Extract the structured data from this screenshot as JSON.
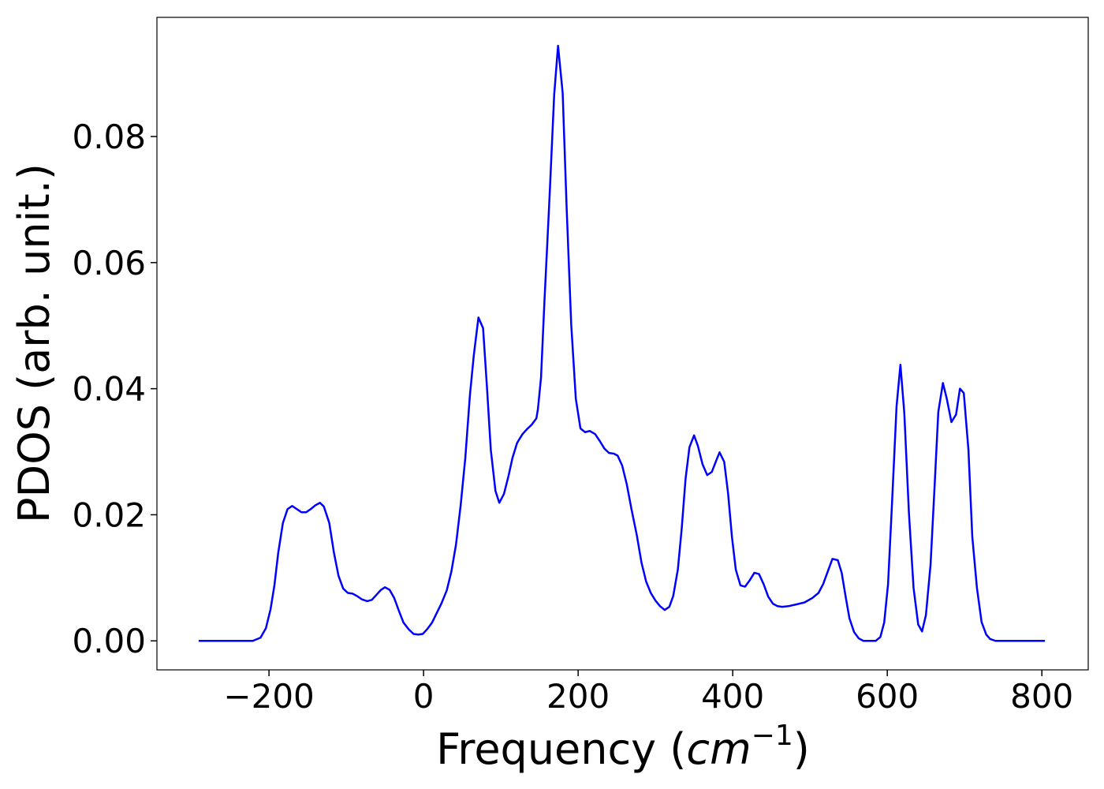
{
  "chart_data": {
    "type": "line",
    "xlabel_parts": [
      "Frequency (",
      "cm",
      "−1",
      ")"
    ],
    "ylabel": "PDOS (arb. unit.)",
    "x": [
      -291,
      -221,
      -211,
      -204,
      -198,
      -193,
      -188,
      -182,
      -176,
      -170,
      -164,
      -158,
      -152,
      -146,
      -140,
      -134,
      -129,
      -122,
      -116,
      -110,
      -104,
      -98,
      -92,
      -86,
      -80,
      -73,
      -67,
      -61,
      -55,
      -50,
      -44,
      -38,
      -32,
      -26,
      -19,
      -13,
      -7,
      -1,
      5,
      11,
      17,
      23,
      30,
      36,
      42,
      48,
      54,
      60,
      65,
      71,
      77,
      82,
      87,
      93,
      98,
      104,
      110,
      115,
      121,
      128,
      134,
      140,
      146,
      148,
      152,
      156,
      163,
      169,
      174,
      180,
      185,
      191,
      197,
      203,
      209,
      215,
      222,
      228,
      234,
      240,
      246,
      251,
      257,
      263,
      269,
      276,
      282,
      288,
      294,
      300,
      306,
      312,
      318,
      323,
      329,
      334,
      339,
      344,
      350,
      355,
      361,
      367,
      373,
      379,
      383,
      389,
      394,
      399,
      404,
      410,
      416,
      422,
      428,
      434,
      440,
      446,
      452,
      458,
      464,
      472,
      483,
      493,
      503,
      511,
      517,
      523,
      529,
      536,
      541,
      546,
      551,
      557,
      563,
      569,
      585,
      591,
      596,
      601,
      606,
      612,
      617,
      622,
      628,
      634,
      640,
      645,
      650,
      656,
      661,
      666,
      672,
      677,
      683,
      689,
      694,
      699,
      705,
      710,
      716,
      722,
      728,
      733,
      740,
      804
    ],
    "series": [
      {
        "name": "PDOS",
        "color": "#0000ff",
        "values": [
          0,
          0,
          0.0005,
          0.002,
          0.005,
          0.0088,
          0.014,
          0.0187,
          0.0209,
          0.0214,
          0.0209,
          0.0204,
          0.0204,
          0.0209,
          0.0215,
          0.0219,
          0.0213,
          0.0187,
          0.014,
          0.0103,
          0.0083,
          0.0076,
          0.0075,
          0.0071,
          0.0066,
          0.0063,
          0.0065,
          0.0073,
          0.0081,
          0.0085,
          0.0081,
          0.0068,
          0.0048,
          0.0029,
          0.0018,
          0.0011,
          0.001,
          0.0011,
          0.0019,
          0.0029,
          0.0044,
          0.0059,
          0.008,
          0.011,
          0.0153,
          0.0215,
          0.029,
          0.039,
          0.0453,
          0.0513,
          0.0496,
          0.0403,
          0.0303,
          0.0238,
          0.0219,
          0.0233,
          0.0262,
          0.029,
          0.0314,
          0.0328,
          0.0336,
          0.0343,
          0.0353,
          0.0368,
          0.0418,
          0.0528,
          0.0704,
          0.0866,
          0.0944,
          0.0869,
          0.0691,
          0.0503,
          0.0384,
          0.0337,
          0.0331,
          0.0333,
          0.0328,
          0.0317,
          0.0305,
          0.0298,
          0.0297,
          0.0294,
          0.0278,
          0.0248,
          0.0209,
          0.0167,
          0.0124,
          0.0094,
          0.0076,
          0.0064,
          0.0055,
          0.0049,
          0.0054,
          0.0071,
          0.0113,
          0.0178,
          0.0257,
          0.0307,
          0.0326,
          0.0309,
          0.028,
          0.0263,
          0.0268,
          0.0287,
          0.0299,
          0.0284,
          0.0234,
          0.0165,
          0.0113,
          0.0088,
          0.0086,
          0.0096,
          0.0108,
          0.0106,
          0.009,
          0.007,
          0.0059,
          0.0055,
          0.0054,
          0.0055,
          0.0058,
          0.0061,
          0.0068,
          0.0076,
          0.009,
          0.011,
          0.013,
          0.0128,
          0.0108,
          0.0071,
          0.0036,
          0.0014,
          0.0004,
          0,
          0,
          0.0006,
          0.0029,
          0.009,
          0.0215,
          0.0372,
          0.0438,
          0.0362,
          0.0203,
          0.0084,
          0.0026,
          0.0015,
          0.0041,
          0.0121,
          0.024,
          0.0363,
          0.0409,
          0.0384,
          0.0347,
          0.0359,
          0.04,
          0.0393,
          0.0303,
          0.0165,
          0.0084,
          0.003,
          0.001,
          0.0003,
          0,
          0
        ]
      }
    ],
    "xlim": [
      -345,
      860
    ],
    "xticks": [
      {
        "value": -200,
        "label": "−200"
      },
      0,
      200,
      400,
      600,
      800
    ],
    "ylim": [
      -0.0046,
      0.0989
    ],
    "yticks": [
      {
        "value": 0,
        "label": "0.00"
      },
      {
        "value": 0.02,
        "label": "0.02"
      },
      {
        "value": 0.04,
        "label": "0.04"
      },
      {
        "value": 0.06,
        "label": "0.06"
      },
      {
        "value": 0.08,
        "label": "0.08"
      }
    ],
    "grid": false
  }
}
